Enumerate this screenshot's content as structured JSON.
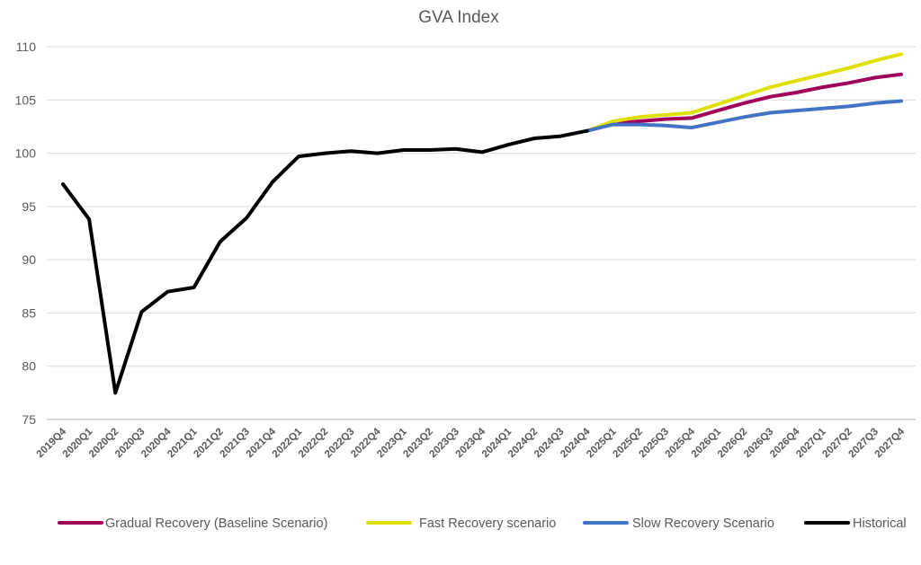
{
  "chart_data": {
    "type": "line",
    "title": "GVA Index",
    "xlabel": "",
    "ylabel": "",
    "ylim": [
      75,
      110
    ],
    "yticks": [
      75,
      80,
      85,
      90,
      95,
      100,
      105,
      110
    ],
    "grid": true,
    "legend_position": "bottom",
    "categories": [
      "2019Q4",
      "2020Q1",
      "2020Q2",
      "2020Q3",
      "2020Q4",
      "2021Q1",
      "2021Q2",
      "2021Q3",
      "2021Q4",
      "2022Q1",
      "2022Q2",
      "2022Q3",
      "2022Q4",
      "2023Q1",
      "2023Q2",
      "2023Q3",
      "2023Q4",
      "2024Q1",
      "2024Q2",
      "2024Q3",
      "2024Q4",
      "2025Q1",
      "2025Q2",
      "2025Q3",
      "2025Q4",
      "2026Q1",
      "2026Q2",
      "2026Q3",
      "2026Q4",
      "2027Q1",
      "2027Q2",
      "2027Q3",
      "2027Q4"
    ],
    "series": [
      {
        "name": "Gradual Recovery (Baseline Scenario)",
        "color": "#a0005a",
        "values": [
          null,
          null,
          null,
          null,
          null,
          null,
          null,
          null,
          null,
          null,
          null,
          null,
          null,
          null,
          null,
          null,
          null,
          null,
          null,
          null,
          102.1,
          102.8,
          103.0,
          103.2,
          103.3,
          104.0,
          104.7,
          105.3,
          105.7,
          106.2,
          106.6,
          107.1,
          107.4
        ]
      },
      {
        "name": "Fast Recovery scenario",
        "color": "#e0e000",
        "values": [
          null,
          null,
          null,
          null,
          null,
          null,
          null,
          null,
          null,
          null,
          null,
          null,
          null,
          null,
          null,
          null,
          null,
          null,
          null,
          null,
          102.1,
          103.0,
          103.4,
          103.6,
          103.8,
          104.6,
          105.4,
          106.2,
          106.8,
          107.4,
          108.0,
          108.7,
          109.3
        ]
      },
      {
        "name": "Slow Recovery Scenario",
        "color": "#4472c4",
        "values": [
          null,
          null,
          null,
          null,
          null,
          null,
          null,
          null,
          null,
          null,
          null,
          null,
          null,
          null,
          null,
          null,
          null,
          null,
          null,
          null,
          102.1,
          102.7,
          102.7,
          102.6,
          102.4,
          102.9,
          103.4,
          103.8,
          104.0,
          104.2,
          104.4,
          104.7,
          104.9
        ]
      },
      {
        "name": "Historical",
        "color": "#000000",
        "values": [
          97.1,
          93.8,
          77.5,
          85.1,
          87.0,
          87.4,
          91.7,
          93.9,
          97.3,
          99.7,
          100.0,
          100.2,
          100.0,
          100.3,
          100.3,
          100.4,
          100.1,
          100.8,
          101.4,
          101.6,
          102.1,
          null,
          null,
          null,
          null,
          null,
          null,
          null,
          null,
          null,
          null,
          null,
          null
        ]
      }
    ]
  }
}
